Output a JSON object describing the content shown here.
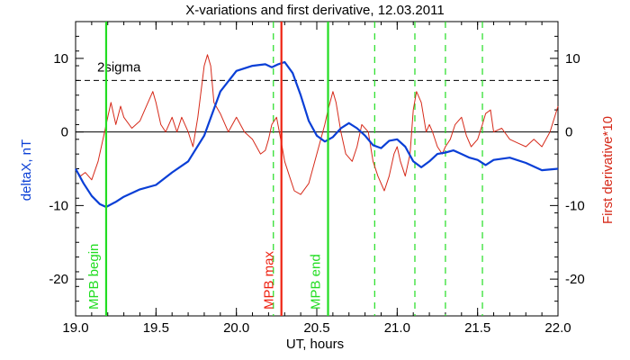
{
  "chart_data": {
    "type": "line",
    "title": "X-variations and first derivative, 12.03.2011",
    "xlabel": "UT, hours",
    "ylabel_left": "deltaX, nT",
    "ylabel_right": "First derivative*10",
    "xlim": [
      19.0,
      22.0
    ],
    "ylim": [
      -25,
      15
    ],
    "x_ticks": [
      19.0,
      19.5,
      20.0,
      20.5,
      21.0,
      21.5,
      22.0
    ],
    "x_tick_labels": [
      "19.0",
      "19.5",
      "20.0",
      "20.5",
      "21.0",
      "21.5",
      "22.0"
    ],
    "y_ticks": [
      10,
      0,
      -10,
      -20
    ],
    "y_tick_labels": [
      "10",
      "0",
      "-10",
      "-20"
    ],
    "grid": false,
    "colors": {
      "deltaX": "#0a3fd6",
      "derivative": "#d62a1a",
      "mpb_edge": "#22dd22",
      "mpb_max": "#ee2211",
      "threshold": "#000000"
    },
    "threshold": {
      "label": "2sigma",
      "value": 7
    },
    "zero_line": 0,
    "markers": [
      {
        "label": "MPB begin",
        "x": 19.19,
        "kind": "begin"
      },
      {
        "label": "MPB max",
        "x": 20.28,
        "kind": "max"
      },
      {
        "label": "MPB end",
        "x": 20.57,
        "kind": "end"
      }
    ],
    "dashed_lines": [
      20.23,
      20.86,
      21.11,
      21.3,
      21.53
    ],
    "series": [
      {
        "key": "deltaX",
        "x": [
          19.0,
          19.05,
          19.1,
          19.15,
          19.19,
          19.25,
          19.3,
          19.4,
          19.5,
          19.6,
          19.7,
          19.8,
          19.9,
          20.0,
          20.1,
          20.18,
          20.22,
          20.26,
          20.3,
          20.35,
          20.4,
          20.45,
          20.5,
          20.55,
          20.6,
          20.65,
          20.7,
          20.75,
          20.8,
          20.85,
          20.9,
          20.95,
          21.0,
          21.05,
          21.1,
          21.15,
          21.2,
          21.25,
          21.3,
          21.35,
          21.4,
          21.45,
          21.5,
          21.55,
          21.6,
          21.7,
          21.8,
          21.9,
          22.0
        ],
        "y": [
          -5,
          -7,
          -8.7,
          -9.8,
          -10.2,
          -9.5,
          -8.8,
          -7.8,
          -7.2,
          -5.5,
          -4,
          -0.5,
          5.5,
          8.3,
          9,
          9.2,
          8.8,
          9.2,
          9.5,
          8,
          5,
          1.5,
          -0.5,
          -1.3,
          -0.7,
          0.5,
          1.2,
          0.5,
          -0.5,
          -1.8,
          -2.2,
          -1.2,
          -1.0,
          -2.0,
          -4.0,
          -4.8,
          -4.0,
          -3.0,
          -2.8,
          -2.5,
          -3.0,
          -3.5,
          -3.8,
          -4.5,
          -3.8,
          -3.5,
          -4.2,
          -5.2,
          -5.0
        ]
      },
      {
        "key": "derivative",
        "x": [
          19.0,
          19.03,
          19.06,
          19.1,
          19.14,
          19.18,
          19.2,
          19.22,
          19.25,
          19.28,
          19.3,
          19.35,
          19.4,
          19.45,
          19.48,
          19.5,
          19.53,
          19.56,
          19.6,
          19.63,
          19.66,
          19.7,
          19.73,
          19.76,
          19.8,
          19.82,
          19.84,
          19.86,
          19.9,
          19.95,
          20.0,
          20.05,
          20.1,
          20.15,
          20.18,
          20.2,
          20.22,
          20.25,
          20.28,
          20.3,
          20.33,
          20.36,
          20.4,
          20.45,
          20.5,
          20.55,
          20.57,
          20.6,
          20.62,
          20.65,
          20.68,
          20.72,
          20.75,
          20.78,
          20.82,
          20.85,
          20.88,
          20.92,
          20.95,
          20.98,
          21.0,
          21.02,
          21.05,
          21.08,
          21.1,
          21.12,
          21.15,
          21.18,
          21.2,
          21.22,
          21.25,
          21.28,
          21.3,
          21.33,
          21.36,
          21.4,
          21.43,
          21.46,
          21.5,
          21.53,
          21.55,
          21.58,
          21.6,
          21.65,
          21.7,
          21.75,
          21.8,
          21.85,
          21.9,
          21.95,
          22.0
        ],
        "y": [
          -5,
          -6,
          -5.5,
          -6.5,
          -4,
          0,
          2,
          4,
          1,
          3.5,
          2,
          0.5,
          1.5,
          4,
          5.5,
          4,
          1,
          0,
          2,
          0,
          2,
          0,
          -2,
          2,
          9,
          10.5,
          9,
          4,
          2.5,
          0,
          2,
          0,
          -1,
          -3,
          -2.5,
          -1,
          1,
          2,
          -1.5,
          -4,
          -6,
          -8,
          -8.5,
          -7,
          -3,
          1,
          3,
          5.5,
          4,
          0,
          -3,
          -4,
          -2,
          1,
          0,
          -4,
          -6,
          -8,
          -6,
          -3,
          -2,
          -4,
          -6,
          -3,
          3,
          5.5,
          4,
          0,
          1,
          0,
          -2,
          -3,
          -2,
          -1,
          1,
          2,
          -0.5,
          -2,
          -1,
          1,
          2.5,
          3,
          0,
          0.5,
          -1,
          -1.5,
          -2,
          -1,
          -2,
          0,
          3.5
        ]
      }
    ]
  }
}
